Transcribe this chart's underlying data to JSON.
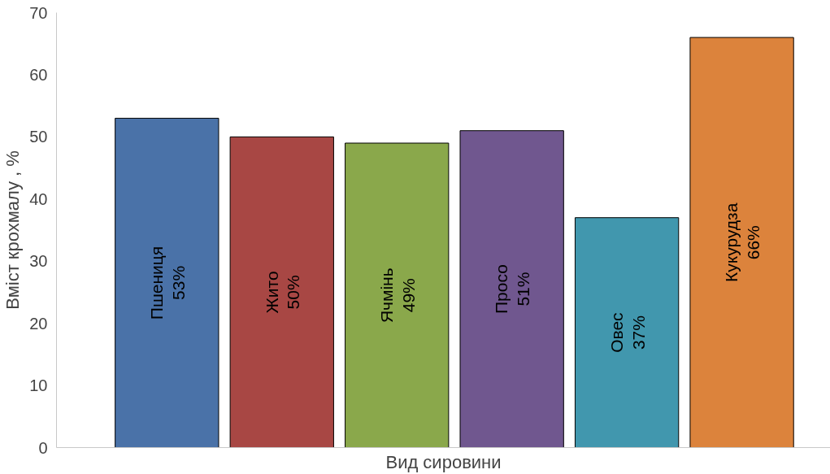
{
  "chart_data": {
    "type": "bar",
    "xlabel": "Вид сировини",
    "ylabel": "Вміст крохмалу , %",
    "categories": [
      "Пшениця",
      "Жито",
      "Ячмінь",
      "Просо",
      "Овес",
      "Кукурудза"
    ],
    "values": [
      53,
      50,
      49,
      51,
      37,
      66
    ],
    "value_labels": [
      "53%",
      "50%",
      "49%",
      "51%",
      "37%",
      "66%"
    ],
    "colors": [
      "#4a72a8",
      "#a84744",
      "#8aa84b",
      "#70578f",
      "#4197ae",
      "#dc833c"
    ],
    "ylim": [
      0,
      70
    ],
    "yticks": [
      0,
      10,
      20,
      30,
      40,
      50,
      60,
      70
    ],
    "grid": false
  }
}
